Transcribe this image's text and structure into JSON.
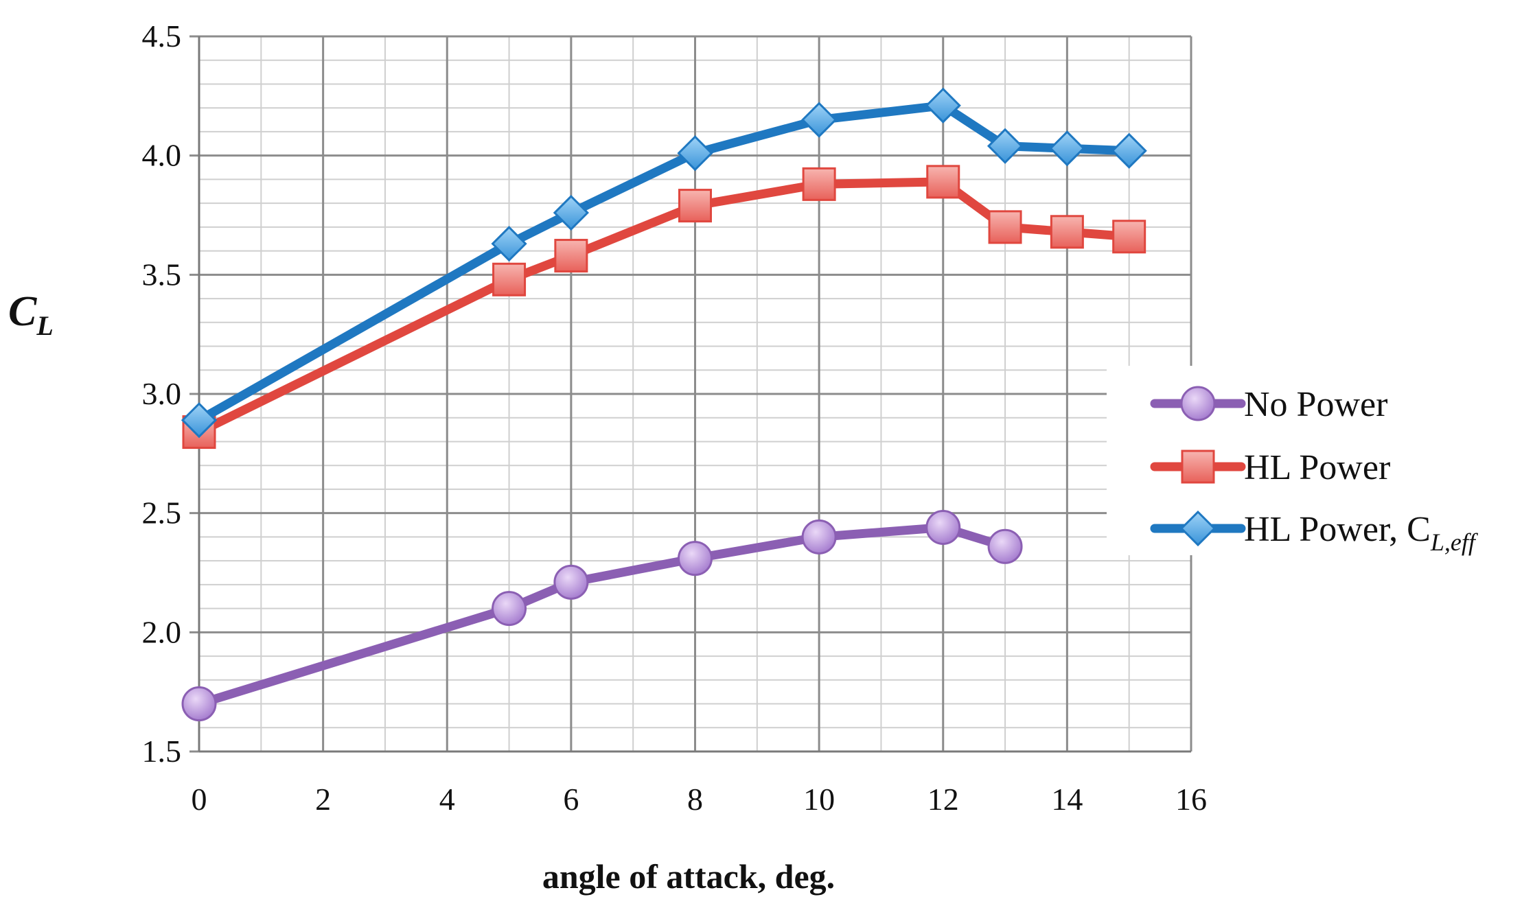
{
  "chart_data": {
    "type": "line",
    "xlabel": "angle of attack, deg.",
    "ylabel_main": "C",
    "ylabel_sub": "L",
    "xlim": [
      0,
      16
    ],
    "ylim": [
      1.5,
      4.5
    ],
    "xticks": [
      "0",
      "2",
      "4",
      "6",
      "8",
      "10",
      "12",
      "14",
      "16"
    ],
    "yticks": [
      "1.5",
      "2.0",
      "2.5",
      "3.0",
      "3.5",
      "4.0",
      "4.5"
    ],
    "grid": true,
    "legend_position": "right",
    "series": [
      {
        "name": "No Power",
        "color": "#8b5fb3",
        "marker": "circle",
        "x": [
          0,
          5,
          6,
          8,
          10,
          12,
          13
        ],
        "y": [
          1.7,
          2.1,
          2.21,
          2.31,
          2.4,
          2.44,
          2.36
        ]
      },
      {
        "name": "HL Power",
        "color": "#e0473f",
        "marker": "square",
        "x": [
          0,
          5,
          6,
          8,
          10,
          12,
          13,
          14,
          15
        ],
        "y": [
          2.84,
          3.48,
          3.58,
          3.79,
          3.88,
          3.89,
          3.7,
          3.68,
          3.66
        ]
      },
      {
        "name": "HL Power, C",
        "name_sub": "L,eff",
        "color": "#1f78c1",
        "marker": "diamond",
        "x": [
          0,
          5,
          6,
          8,
          10,
          12,
          13,
          14,
          15
        ],
        "y": [
          2.89,
          3.63,
          3.76,
          4.01,
          4.15,
          4.21,
          4.04,
          4.03,
          4.02
        ]
      }
    ]
  }
}
